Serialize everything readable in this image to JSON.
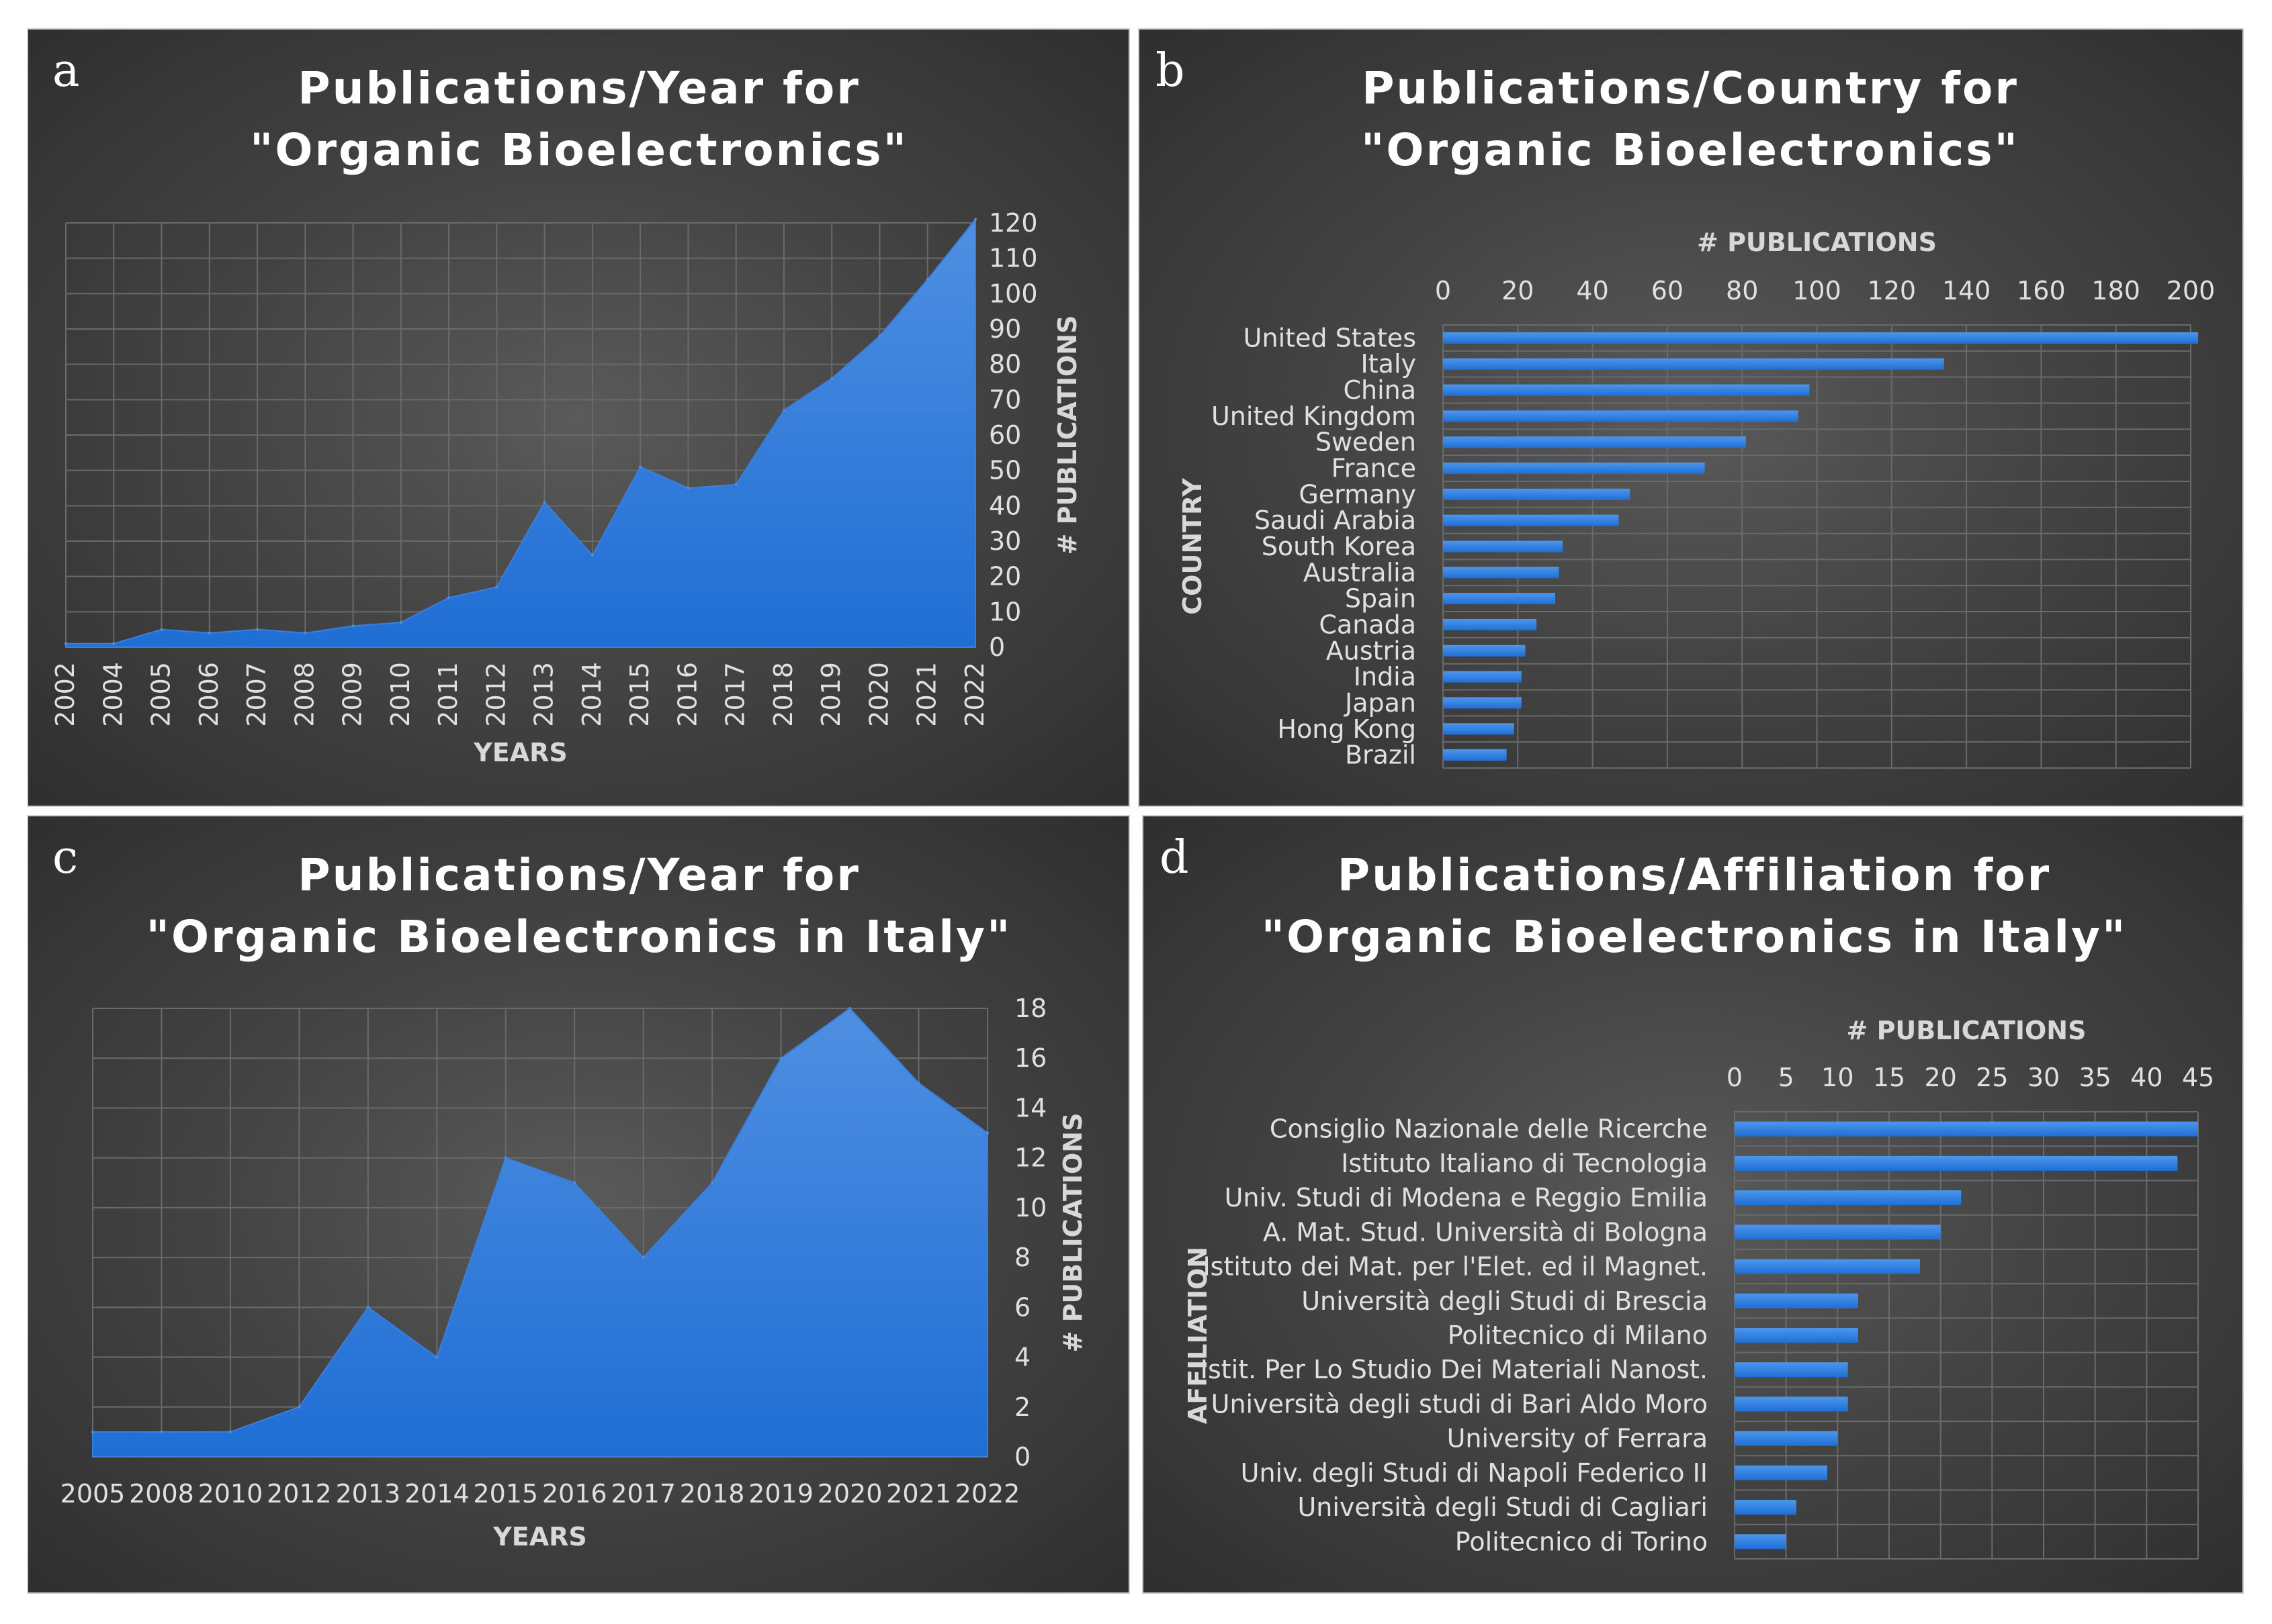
{
  "colors": {
    "area": "#1f6ed4",
    "area_top": "#4f8fe2",
    "bar": "#1e6fd6",
    "bar_light": "#4d96ec",
    "grid": "#6a6a6a",
    "text": "#ffffff",
    "axis_text": "#e0e0e0"
  },
  "chart_data": [
    {
      "id": "a",
      "panel_label": "a",
      "type": "area",
      "title": [
        "Publications/Year for",
        "\"Organic Bioelectronics\""
      ],
      "xlabel": "YEARS",
      "ylabel": "# PUBLICATIONS",
      "categories": [
        "2002",
        "2004",
        "2005",
        "2006",
        "2007",
        "2008",
        "2009",
        "2010",
        "2011",
        "2012",
        "2013",
        "2014",
        "2015",
        "2016",
        "2017",
        "2018",
        "2019",
        "2020",
        "2021",
        "2022"
      ],
      "values": [
        1,
        1,
        5,
        4,
        5,
        4,
        6,
        7,
        14,
        17,
        41,
        26,
        51,
        45,
        46,
        67,
        76,
        88,
        104,
        121
      ],
      "ylim": [
        0,
        120
      ],
      "yticks": [
        0,
        10,
        20,
        30,
        40,
        50,
        60,
        70,
        80,
        90,
        100,
        110,
        120
      ],
      "yaxis_side": "right",
      "grid": true
    },
    {
      "id": "b",
      "panel_label": "b",
      "type": "bar",
      "orientation": "horizontal",
      "title": [
        "Publications/Country for",
        "\"Organic Bioelectronics\""
      ],
      "xlabel": "# PUBLICATIONS",
      "ylabel": "COUNTRY",
      "categories": [
        "United States",
        "Italy",
        "China",
        "United Kingdom",
        "Sweden",
        "France",
        "Germany",
        "Saudi Arabia",
        "South Korea",
        "Australia",
        "Spain",
        "Canada",
        "Austria",
        "India",
        "Japan",
        "Hong Kong",
        "Brazil"
      ],
      "values": [
        202,
        134,
        98,
        95,
        81,
        70,
        50,
        47,
        32,
        31,
        30,
        25,
        22,
        21,
        21,
        19,
        17
      ],
      "xlim": [
        0,
        200
      ],
      "xticks": [
        0,
        20,
        40,
        60,
        80,
        100,
        120,
        140,
        160,
        180,
        200
      ],
      "xaxis_side": "top",
      "grid": true
    },
    {
      "id": "c",
      "panel_label": "c",
      "type": "area",
      "title": [
        "Publications/Year for",
        "\"Organic Bioelectronics in Italy\""
      ],
      "xlabel": "YEARS",
      "ylabel": "# PUBLICATIONS",
      "categories": [
        "2005",
        "2008",
        "2010",
        "2012",
        "2013",
        "2014",
        "2015",
        "2016",
        "2017",
        "2018",
        "2019",
        "2020",
        "2021",
        "2022"
      ],
      "values": [
        1,
        1,
        1,
        2,
        6,
        4,
        12,
        11,
        8,
        11,
        16,
        18,
        15,
        13
      ],
      "ylim": [
        0,
        18
      ],
      "yticks": [
        0,
        2,
        4,
        6,
        8,
        10,
        12,
        14,
        16,
        18
      ],
      "yaxis_side": "right",
      "grid": true
    },
    {
      "id": "d",
      "panel_label": "d",
      "type": "bar",
      "orientation": "horizontal",
      "title": [
        "Publications/Affiliation for",
        "\"Organic Bioelectronics in Italy\""
      ],
      "xlabel": "# PUBLICATIONS",
      "ylabel": "AFFILIATION",
      "categories": [
        "Consiglio Nazionale delle Ricerche",
        "Istituto Italiano di Tecnologia",
        "Univ. Studi di Modena e Reggio Emilia",
        "A. Mat. Stud. Università di Bologna",
        "Istituto dei Mat. per l'Elet. ed il Magnet.",
        "Università degli Studi di Brescia",
        "Politecnico di Milano",
        "Istit. Per Lo Studio Dei Materiali Nanost.",
        "Università degli studi di Bari Aldo Moro",
        "University of Ferrara",
        "Univ. degli Studi di Napoli Federico II",
        "Università degli Studi di Cagliari",
        "Politecnico di Torino"
      ],
      "values": [
        45,
        43,
        22,
        20,
        18,
        12,
        12,
        11,
        11,
        10,
        9,
        6,
        5
      ],
      "xlim": [
        0,
        45
      ],
      "xticks": [
        0,
        5,
        10,
        15,
        20,
        25,
        30,
        35,
        40,
        45
      ],
      "xaxis_side": "top",
      "grid": true
    }
  ]
}
